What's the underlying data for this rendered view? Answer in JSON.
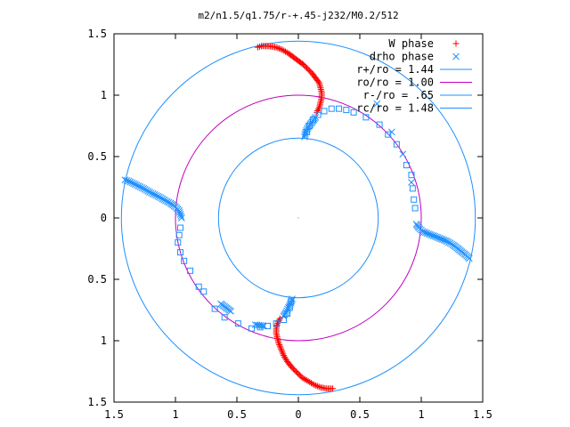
{
  "chart_data": {
    "type": "scatter",
    "title": "m2/n1.5/q1.75/r-+.45-j232/M0.2/512",
    "xlim": [
      -1.5,
      1.5
    ],
    "ylim": [
      -1.5,
      1.5
    ],
    "x_tick_labels": [
      "1.5",
      "1",
      "0.5",
      "0",
      "0.5",
      "1",
      "1.5"
    ],
    "y_tick_labels": [
      "1.5",
      "1",
      "0.5",
      "0",
      "0.5",
      "1",
      "1.5"
    ],
    "grid": false,
    "legend_position": "top-right",
    "legend": [
      {
        "label": "W phase",
        "marker": "plus",
        "color": "#ff0000"
      },
      {
        "label": "drho phase",
        "marker": "cross",
        "color": "#1e90ff"
      },
      {
        "label": "r+/ro = 1.44",
        "marker": "line",
        "color": "#1e90ff"
      },
      {
        "label": "ro/ro = 1.00",
        "marker": "line",
        "color": "#c000c0"
      },
      {
        "label": "r-/ro = .65",
        "marker": "line",
        "color": "#1e90ff"
      },
      {
        "label": "rc/ro = 1.48",
        "marker": "line",
        "color": "#1e90ff"
      }
    ],
    "circles": [
      {
        "name": "r+/ro",
        "radius": 1.44,
        "color": "#1e90ff"
      },
      {
        "name": "ro/ro",
        "radius": 1.0,
        "color": "#c000c0"
      },
      {
        "name": "r-/ro",
        "radius": 0.65,
        "color": "#1e90ff"
      }
    ],
    "series": [
      {
        "name": "W phase",
        "color": "#ff0000",
        "marker": "plus",
        "points": [
          [
            -0.33,
            1.39
          ],
          [
            -0.3,
            1.4
          ],
          [
            -0.24,
            1.4
          ],
          [
            -0.18,
            1.39
          ],
          [
            -0.13,
            1.37
          ],
          [
            -0.08,
            1.34
          ],
          [
            -0.04,
            1.31
          ],
          [
            0.0,
            1.28
          ],
          [
            0.04,
            1.25
          ],
          [
            0.08,
            1.21
          ],
          [
            0.11,
            1.18
          ],
          [
            0.14,
            1.14
          ],
          [
            0.17,
            1.1
          ],
          [
            0.18,
            1.06
          ],
          [
            0.19,
            1.02
          ],
          [
            0.19,
            0.98
          ],
          [
            0.18,
            0.94
          ],
          [
            0.17,
            0.9
          ],
          [
            0.15,
            0.86
          ],
          [
            -0.15,
            -0.82
          ],
          [
            -0.17,
            -0.86
          ],
          [
            -0.18,
            -0.9
          ],
          [
            -0.18,
            -0.94
          ],
          [
            -0.17,
            -0.98
          ],
          [
            -0.16,
            -1.02
          ],
          [
            -0.14,
            -1.07
          ],
          [
            -0.12,
            -1.12
          ],
          [
            -0.09,
            -1.17
          ],
          [
            -0.05,
            -1.22
          ],
          [
            -0.01,
            -1.26
          ],
          [
            0.03,
            -1.3
          ],
          [
            0.08,
            -1.33
          ],
          [
            0.13,
            -1.36
          ],
          [
            0.18,
            -1.38
          ],
          [
            0.23,
            -1.39
          ],
          [
            0.28,
            -1.39
          ]
        ]
      },
      {
        "name": "drho phase",
        "color": "#1e90ff",
        "marker": "cross",
        "points": [
          [
            0.14,
            0.82
          ],
          [
            0.11,
            0.78
          ],
          [
            0.08,
            0.74
          ],
          [
            0.06,
            0.7
          ],
          [
            0.05,
            0.66
          ],
          [
            -0.05,
            -0.66
          ],
          [
            -0.06,
            -0.69
          ],
          [
            -0.08,
            -0.73
          ],
          [
            -0.1,
            -0.77
          ],
          [
            -0.12,
            -0.8
          ],
          [
            -1.41,
            0.31
          ],
          [
            -1.38,
            0.3
          ],
          [
            -1.34,
            0.28
          ],
          [
            -1.3,
            0.26
          ],
          [
            -1.26,
            0.24
          ],
          [
            -1.21,
            0.21
          ],
          [
            -1.17,
            0.19
          ],
          [
            -1.13,
            0.17
          ],
          [
            -1.08,
            0.14
          ],
          [
            -1.04,
            0.12
          ],
          [
            -1.0,
            0.09
          ],
          [
            -0.97,
            0.06
          ],
          [
            -0.96,
            0.03
          ],
          [
            -0.95,
            0.0
          ],
          [
            0.96,
            -0.05
          ],
          [
            0.98,
            -0.08
          ],
          [
            1.01,
            -0.11
          ],
          [
            1.06,
            -0.13
          ],
          [
            1.11,
            -0.15
          ],
          [
            1.16,
            -0.17
          ],
          [
            1.21,
            -0.19
          ],
          [
            1.26,
            -0.22
          ],
          [
            1.31,
            -0.26
          ],
          [
            1.36,
            -0.3
          ],
          [
            1.39,
            -0.33
          ],
          [
            0.64,
            0.93
          ],
          [
            0.76,
            0.7
          ],
          [
            0.85,
            0.52
          ],
          [
            0.92,
            0.29
          ],
          [
            -0.63,
            -0.7
          ],
          [
            -0.55,
            -0.76
          ],
          [
            -0.35,
            -0.87
          ],
          [
            -0.28,
            -0.88
          ]
        ]
      },
      {
        "name": "drho phase (squares)",
        "color": "#1e90ff",
        "marker": "square",
        "points": [
          [
            0.07,
            0.7
          ],
          [
            0.09,
            0.75
          ],
          [
            0.12,
            0.8
          ],
          [
            0.16,
            0.84
          ],
          [
            0.21,
            0.87
          ],
          [
            0.27,
            0.89
          ],
          [
            0.33,
            0.89
          ],
          [
            0.39,
            0.88
          ],
          [
            0.45,
            0.86
          ],
          [
            0.55,
            0.82
          ],
          [
            0.66,
            0.76
          ],
          [
            0.73,
            0.68
          ],
          [
            0.8,
            0.6
          ],
          [
            0.88,
            0.43
          ],
          [
            0.92,
            0.35
          ],
          [
            0.93,
            0.24
          ],
          [
            0.94,
            0.15
          ],
          [
            0.95,
            0.08
          ],
          [
            -0.96,
            -0.08
          ],
          [
            -0.97,
            -0.14
          ],
          [
            -0.98,
            -0.2
          ],
          [
            -0.96,
            -0.28
          ],
          [
            -0.93,
            -0.35
          ],
          [
            -0.88,
            -0.43
          ],
          [
            -0.81,
            -0.56
          ],
          [
            -0.77,
            -0.6
          ],
          [
            -0.68,
            -0.74
          ],
          [
            -0.6,
            -0.81
          ],
          [
            -0.49,
            -0.86
          ],
          [
            -0.38,
            -0.9
          ],
          [
            -0.31,
            -0.89
          ],
          [
            -0.25,
            -0.88
          ],
          [
            -0.18,
            -0.86
          ],
          [
            -0.12,
            -0.83
          ],
          [
            -0.09,
            -0.78
          ],
          [
            -0.07,
            -0.73
          ],
          [
            -0.06,
            -0.68
          ]
        ]
      },
      {
        "name": "center",
        "color": "#00b050",
        "marker": "dot",
        "points": [
          [
            0.0,
            0.0
          ]
        ]
      }
    ]
  }
}
